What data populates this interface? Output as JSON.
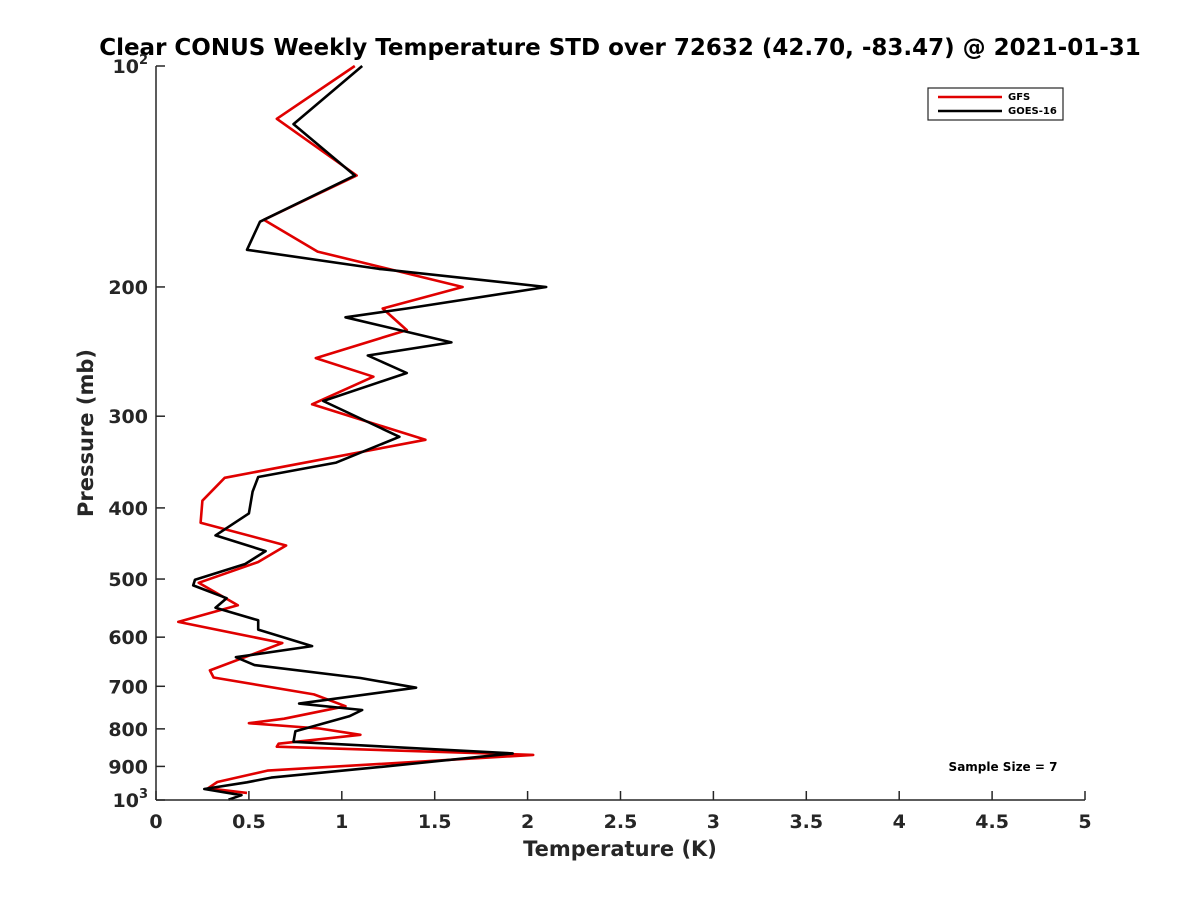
{
  "chart_data": {
    "type": "line",
    "title": "Clear CONUS Weekly Temperature STD over 72632 (42.70, -83.47) @ 2021-01-31",
    "xlabel": "Temperature (K)",
    "ylabel": "Pressure (mb)",
    "xlim": [
      0,
      5
    ],
    "ylim": [
      100,
      1000
    ],
    "y_scale": "log",
    "y_reversed": true,
    "grid": false,
    "legend_position": "top-right",
    "x_ticks": [
      "0",
      "0.5",
      "1",
      "1.5",
      "2",
      "2.5",
      "3",
      "3.5",
      "4",
      "4.5",
      "5"
    ],
    "x_tick_values": [
      0,
      0.5,
      1,
      1.5,
      2,
      2.5,
      3,
      3.5,
      4,
      4.5,
      5
    ],
    "y_ticks": [
      {
        "value": 100,
        "base": "10",
        "exp": "2"
      },
      {
        "value": 200,
        "label": "200"
      },
      {
        "value": 300,
        "label": "300"
      },
      {
        "value": 400,
        "label": "400"
      },
      {
        "value": 500,
        "label": "500"
      },
      {
        "value": 600,
        "label": "600"
      },
      {
        "value": 700,
        "label": "700"
      },
      {
        "value": 800,
        "label": "800"
      },
      {
        "value": 900,
        "label": "900"
      },
      {
        "value": 1000,
        "base": "10",
        "exp": "3"
      }
    ],
    "annotation": "Sample Size = 7",
    "series": [
      {
        "name": "GFS",
        "color": "#e00000",
        "x": [
          1.07,
          0.65,
          1.08,
          0.58,
          0.87,
          1.65,
          1.22,
          1.35,
          0.86,
          1.17,
          0.84,
          1.45,
          0.37,
          0.25,
          0.24,
          0.7,
          0.55,
          0.23,
          0.44,
          0.12,
          0.68,
          0.29,
          0.31,
          0.85,
          1.02,
          0.69,
          0.5,
          0.88,
          1.1,
          0.66,
          0.65,
          2.03,
          0.6,
          0.33,
          0.28,
          0.49
        ],
        "y": [
          100,
          118,
          141,
          162,
          179,
          200,
          214,
          229,
          250,
          265,
          289,
          323,
          364,
          391,
          419,
          450,
          474,
          506,
          543,
          572,
          611,
          666,
          681,
          718,
          745,
          775,
          786,
          799,
          815,
          838,
          846,
          868,
          912,
          945,
          964,
          978
        ]
      },
      {
        "name": "GOES-16",
        "color": "#000000",
        "x": [
          1.11,
          0.74,
          1.07,
          0.56,
          0.49,
          1.2,
          2.1,
          1.35,
          1.02,
          1.59,
          1.14,
          1.35,
          0.9,
          1.31,
          0.97,
          0.55,
          0.52,
          0.5,
          0.32,
          0.59,
          0.48,
          0.21,
          0.2,
          0.38,
          0.32,
          0.55,
          0.55,
          0.84,
          0.43,
          0.53,
          1.1,
          1.4,
          0.77,
          1.11,
          1.04,
          0.75,
          0.74,
          1.92,
          1.2,
          0.62,
          0.49,
          0.26,
          0.46,
          0.39
        ],
        "y": [
          100,
          120,
          141,
          163,
          178,
          189,
          200,
          214,
          220,
          238,
          248,
          262,
          286,
          320,
          347,
          363,
          380,
          407,
          436,
          458,
          477,
          501,
          510,
          531,
          547,
          569,
          586,
          617,
          639,
          655,
          682,
          703,
          739,
          754,
          769,
          806,
          833,
          864,
          902,
          932,
          946,
          966,
          985,
          999
        ]
      }
    ]
  }
}
